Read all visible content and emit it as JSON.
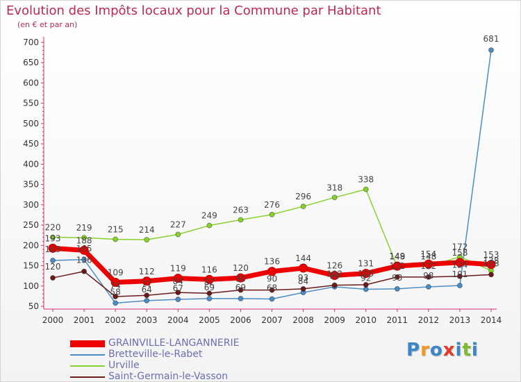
{
  "title": "Evolution des Impôts locaux pour la Commune par Habitant",
  "subtitle": "(en € et par an)",
  "logo": {
    "letters": [
      "P",
      "r",
      "o",
      "x",
      "i",
      "t",
      "i"
    ],
    "colors": [
      "#3a86c8",
      "#f39a1e",
      "#3a86c8",
      "#e23a2e",
      "#3a86c8",
      "#7dbb2c",
      "#3a86c8"
    ]
  },
  "chart_data": {
    "type": "line",
    "x": [
      "2000",
      "2001",
      "2002",
      "2003",
      "2004",
      "2005",
      "2006",
      "2007",
      "2008",
      "2009",
      "2010",
      "2011",
      "2012",
      "2013",
      "2014"
    ],
    "ylim": [
      50,
      700
    ],
    "yticks": [
      50,
      100,
      150,
      200,
      250,
      300,
      350,
      400,
      450,
      500,
      550,
      600,
      650,
      700
    ],
    "grid": false,
    "legend_position": "bottom-left",
    "series": [
      {
        "name": "GRAINVILLE-LANGANNERIE",
        "color": "#ee0000",
        "values": [
          193,
          188,
          109,
          112,
          119,
          116,
          120,
          136,
          144,
          126,
          131,
          149,
          154,
          158,
          153
        ],
        "labels": [
          "193",
          "188",
          "109",
          "112",
          "119",
          "116",
          "120",
          "136",
          "144",
          "126",
          "131",
          "149",
          "154",
          "158",
          "153"
        ]
      },
      {
        "name": "Bretteville-le-Rabet",
        "color": "#4a8cc4",
        "values": [
          163,
          165,
          58,
          64,
          67,
          69,
          69,
          68,
          84,
          98,
          92,
          93,
          98,
          101,
          681
        ],
        "labels": [
          "163",
          "165",
          "58",
          "64",
          "67",
          "69",
          "69",
          "68",
          "84",
          "98",
          "92",
          "93",
          "98",
          "101",
          "681"
        ]
      },
      {
        "name": "Urville",
        "color": "#88d12c",
        "values": [
          220,
          219,
          215,
          214,
          227,
          249,
          263,
          276,
          296,
          318,
          338,
          148,
          148,
          172,
          138
        ],
        "labels": [
          "220",
          "219",
          "215",
          "214",
          "227",
          "249",
          "263",
          "276",
          "296",
          "318",
          "338",
          "148",
          "148",
          "172",
          "138"
        ]
      },
      {
        "name": "Saint-Germain-le-Vasson",
        "color": "#6b1a1a",
        "values": [
          120,
          136,
          74,
          77,
          84,
          82,
          90,
          90,
          93,
          102,
          103,
          122,
          122,
          124,
          128
        ],
        "labels": [
          "120",
          "136",
          "74",
          "77",
          "84",
          "82",
          "90",
          "90",
          "93",
          "102",
          "103",
          "122",
          "122",
          "124",
          "128"
        ]
      }
    ]
  }
}
